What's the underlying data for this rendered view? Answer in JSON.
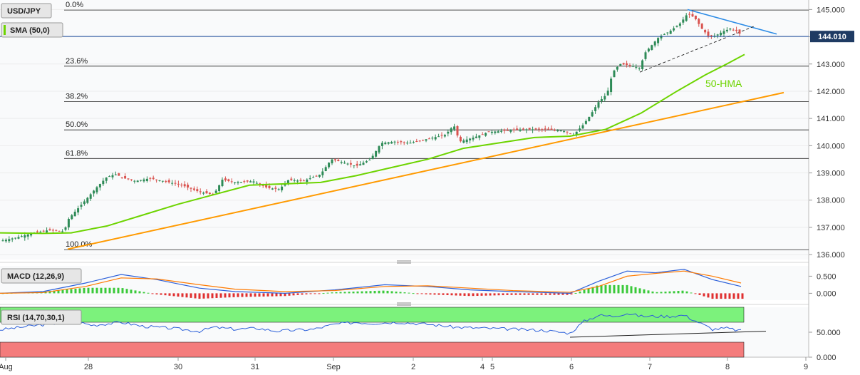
{
  "chart_data": {
    "type": "candlestick",
    "symbol": "USD/JPY",
    "indicator_label": "SMA (50,0)",
    "last_price": "144.010",
    "hma_label": "50-HMA",
    "y_ticks": [
      "145.000",
      "144.000",
      "143.000",
      "142.000",
      "141.000",
      "140.000",
      "139.000",
      "138.000",
      "137.000",
      "136.000"
    ],
    "y_range": [
      135.82,
      145.35
    ],
    "x_ticks": [
      "Aug",
      "28",
      "30",
      "31",
      "Sep",
      "2",
      "4",
      "5",
      "6",
      "7",
      "8",
      "9"
    ],
    "fibonacci": [
      {
        "label": "0.0%",
        "value": 144.98
      },
      {
        "label": "23.6%",
        "value": 142.92
      },
      {
        "label": "38.2%",
        "value": 141.62
      },
      {
        "label": "50.0%",
        "value": 140.58
      },
      {
        "label": "61.8%",
        "value": 139.53
      },
      {
        "label": "100.0%",
        "value": 136.18
      }
    ],
    "price_path": [
      [
        0,
        136.5
      ],
      [
        22,
        136.62
      ],
      [
        45,
        136.78
      ],
      [
        68,
        136.9
      ],
      [
        90,
        136.85
      ],
      [
        96,
        137.3
      ],
      [
        106,
        137.6
      ],
      [
        120,
        138.0
      ],
      [
        135,
        138.45
      ],
      [
        150,
        138.85
      ],
      [
        162,
        138.95
      ],
      [
        175,
        138.8
      ],
      [
        190,
        138.7
      ],
      [
        210,
        138.8
      ],
      [
        230,
        138.7
      ],
      [
        255,
        138.55
      ],
      [
        280,
        138.3
      ],
      [
        300,
        138.2
      ],
      [
        312,
        138.75
      ],
      [
        330,
        138.65
      ],
      [
        355,
        138.7
      ],
      [
        375,
        138.45
      ],
      [
        392,
        138.4
      ],
      [
        405,
        138.75
      ],
      [
        425,
        138.7
      ],
      [
        450,
        138.95
      ],
      [
        465,
        139.5
      ],
      [
        480,
        139.4
      ],
      [
        500,
        139.25
      ],
      [
        520,
        139.5
      ],
      [
        535,
        140.1
      ],
      [
        555,
        140.15
      ],
      [
        575,
        140.1
      ],
      [
        600,
        140.25
      ],
      [
        625,
        140.4
      ],
      [
        637,
        140.75
      ],
      [
        645,
        140.15
      ],
      [
        665,
        140.3
      ],
      [
        685,
        140.5
      ],
      [
        710,
        140.55
      ],
      [
        735,
        140.6
      ],
      [
        765,
        140.6
      ],
      [
        790,
        140.55
      ],
      [
        805,
        140.4
      ],
      [
        818,
        140.75
      ],
      [
        828,
        141.1
      ],
      [
        840,
        141.6
      ],
      [
        852,
        141.9
      ],
      [
        860,
        142.7
      ],
      [
        870,
        143.0
      ],
      [
        885,
        142.95
      ],
      [
        898,
        142.85
      ],
      [
        905,
        143.4
      ],
      [
        915,
        143.7
      ],
      [
        925,
        144.0
      ],
      [
        940,
        144.2
      ],
      [
        955,
        144.5
      ],
      [
        965,
        144.85
      ],
      [
        975,
        144.7
      ],
      [
        985,
        144.3
      ],
      [
        995,
        144.0
      ],
      [
        1005,
        144.05
      ],
      [
        1015,
        144.2
      ],
      [
        1025,
        144.3
      ],
      [
        1035,
        144.2
      ],
      [
        1042,
        144.0
      ]
    ],
    "sma_path": [
      [
        0,
        136.8
      ],
      [
        60,
        136.78
      ],
      [
        100,
        136.8
      ],
      [
        150,
        137.05
      ],
      [
        200,
        137.45
      ],
      [
        250,
        137.85
      ],
      [
        300,
        138.2
      ],
      [
        350,
        138.55
      ],
      [
        400,
        138.6
      ],
      [
        450,
        138.65
      ],
      [
        500,
        138.9
      ],
      [
        550,
        139.2
      ],
      [
        600,
        139.5
      ],
      [
        650,
        139.9
      ],
      [
        700,
        140.1
      ],
      [
        750,
        140.3
      ],
      [
        800,
        140.35
      ],
      [
        850,
        140.6
      ],
      [
        900,
        141.2
      ],
      [
        950,
        142.0
      ],
      [
        990,
        142.6
      ],
      [
        1020,
        143.0
      ],
      [
        1045,
        143.35
      ]
    ],
    "support_line": [
      [
        95,
        136.2
      ],
      [
        1100,
        141.95
      ]
    ],
    "resistance_line": [
      [
        965,
        145.0
      ],
      [
        1090,
        144.1
      ]
    ],
    "triangle_support": [
      [
        898,
        142.7
      ],
      [
        1060,
        144.4
      ]
    ],
    "macd": {
      "label": "MACD (12,26,9)",
      "y_ticks": [
        "0.500",
        "0.000"
      ],
      "y_range": [
        -0.2,
        0.8
      ],
      "macd_path": [
        [
          0,
          0.0
        ],
        [
          60,
          0.05
        ],
        [
          120,
          0.3
        ],
        [
          170,
          0.55
        ],
        [
          220,
          0.4
        ],
        [
          280,
          0.15
        ],
        [
          330,
          0.05
        ],
        [
          400,
          0.0
        ],
        [
          470,
          0.1
        ],
        [
          540,
          0.25
        ],
        [
          600,
          0.2
        ],
        [
          660,
          0.1
        ],
        [
          720,
          0.05
        ],
        [
          800,
          0.0
        ],
        [
          840,
          0.35
        ],
        [
          880,
          0.65
        ],
        [
          920,
          0.6
        ],
        [
          960,
          0.7
        ],
        [
          1000,
          0.4
        ],
        [
          1040,
          0.2
        ]
      ],
      "signal_path": [
        [
          0,
          0.0
        ],
        [
          60,
          0.02
        ],
        [
          120,
          0.2
        ],
        [
          170,
          0.45
        ],
        [
          220,
          0.42
        ],
        [
          280,
          0.25
        ],
        [
          330,
          0.12
        ],
        [
          400,
          0.05
        ],
        [
          470,
          0.08
        ],
        [
          540,
          0.2
        ],
        [
          600,
          0.22
        ],
        [
          660,
          0.15
        ],
        [
          720,
          0.08
        ],
        [
          800,
          0.03
        ],
        [
          840,
          0.2
        ],
        [
          880,
          0.5
        ],
        [
          920,
          0.58
        ],
        [
          960,
          0.65
        ],
        [
          1000,
          0.5
        ],
        [
          1040,
          0.3
        ]
      ]
    },
    "rsi": {
      "label": "RSI (14,70,30,1)",
      "y_ticks": [
        "50.000",
        "0.000"
      ],
      "y_range": [
        0,
        100
      ],
      "overbought": 70,
      "oversold": 30,
      "rsi_path": [
        [
          0,
          55
        ],
        [
          40,
          62
        ],
        [
          80,
          68
        ],
        [
          110,
          70
        ],
        [
          130,
          64
        ],
        [
          170,
          70
        ],
        [
          200,
          62
        ],
        [
          240,
          58
        ],
        [
          280,
          52
        ],
        [
          300,
          60
        ],
        [
          330,
          56
        ],
        [
          360,
          58
        ],
        [
          390,
          52
        ],
        [
          410,
          54
        ],
        [
          440,
          56
        ],
        [
          470,
          66
        ],
        [
          500,
          70
        ],
        [
          520,
          68
        ],
        [
          560,
          70
        ],
        [
          600,
          66
        ],
        [
          640,
          60
        ],
        [
          680,
          58
        ],
        [
          720,
          56
        ],
        [
          760,
          54
        ],
        [
          800,
          48
        ],
        [
          820,
          72
        ],
        [
          840,
          84
        ],
        [
          860,
          82
        ],
        [
          880,
          88
        ],
        [
          900,
          82
        ],
        [
          940,
          82
        ],
        [
          960,
          84
        ],
        [
          980,
          70
        ],
        [
          1000,
          56
        ],
        [
          1020,
          58
        ],
        [
          1042,
          52
        ]
      ],
      "trend_line": [
        [
          800,
          40
        ],
        [
          1075,
          52
        ]
      ]
    }
  }
}
